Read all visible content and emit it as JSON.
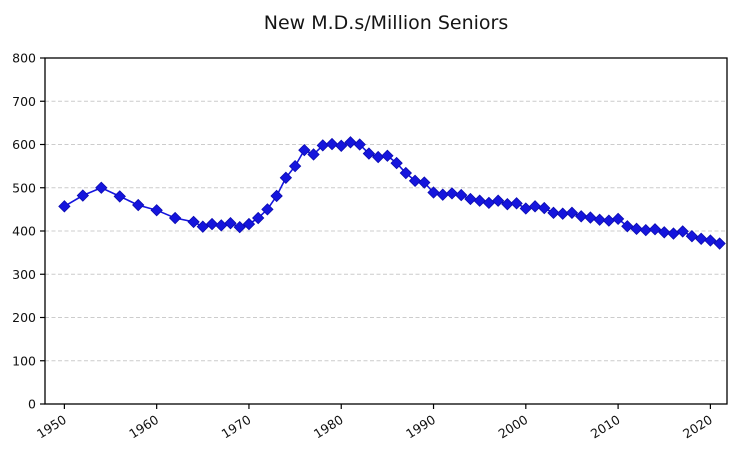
{
  "chart_data": {
    "type": "line",
    "title": "New M.D.s/Million Seniors",
    "xlabel": "",
    "ylabel": "",
    "x": [
      1950,
      1952,
      1954,
      1956,
      1958,
      1960,
      1962,
      1964,
      1965,
      1966,
      1967,
      1968,
      1969,
      1970,
      1971,
      1972,
      1973,
      1974,
      1975,
      1976,
      1977,
      1978,
      1979,
      1980,
      1981,
      1982,
      1983,
      1984,
      1985,
      1986,
      1987,
      1988,
      1989,
      1990,
      1991,
      1992,
      1993,
      1994,
      1995,
      1996,
      1997,
      1998,
      1999,
      2000,
      2001,
      2002,
      2003,
      2004,
      2005,
      2006,
      2007,
      2008,
      2009,
      2010,
      2011,
      2012,
      2013,
      2014,
      2015,
      2016,
      2017,
      2018,
      2019,
      2020,
      2021
    ],
    "values": [
      457,
      482,
      500,
      480,
      460,
      448,
      430,
      421,
      410,
      416,
      413,
      418,
      409,
      416,
      430,
      450,
      481,
      523,
      550,
      587,
      577,
      598,
      601,
      597,
      605,
      600,
      579,
      571,
      574,
      557,
      534,
      516,
      512,
      489,
      484,
      487,
      483,
      474,
      470,
      465,
      470,
      462,
      464,
      452,
      457,
      453,
      442,
      440,
      442,
      434,
      431,
      426,
      424,
      428,
      411,
      405,
      402,
      404,
      397,
      394,
      399,
      388,
      382,
      378,
      371
    ],
    "series": [
      {
        "name": "New M.D.s per million seniors",
        "marker": "diamond"
      }
    ],
    "xlim": [
      1947.9,
      2021.8
    ],
    "ylim": [
      0,
      800
    ],
    "xticks": [
      1950,
      1960,
      1970,
      1980,
      1990,
      2000,
      2010,
      2020
    ],
    "yticks": [
      0,
      100,
      200,
      300,
      400,
      500,
      600,
      700,
      800
    ],
    "grid": "horizontal, dashed",
    "legend_position": "none",
    "line_color": "#1515dd",
    "marker_color": "#1515dd",
    "grid_color": "#cccccc",
    "spine_color": "#000000",
    "tick_label_color": "#111111"
  }
}
